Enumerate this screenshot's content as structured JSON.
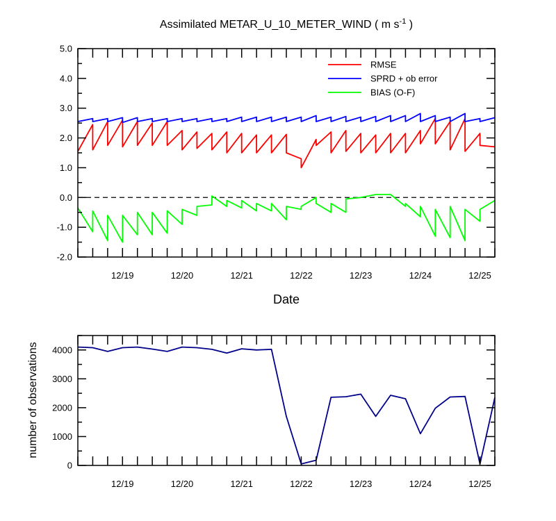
{
  "chart_data": [
    {
      "type": "line",
      "title": "Assimilated METAR_U_10_METER_WIND ( m s",
      "title_superscript": "-1",
      "title_close": " )",
      "xlabel": "Date",
      "ylabel": "",
      "xlim": [
        18.25,
        25.25
      ],
      "ylim": [
        -2.0,
        5.0
      ],
      "yticks": [
        -2.0,
        -1.0,
        0.0,
        1.0,
        2.0,
        3.0,
        4.0,
        5.0
      ],
      "ytick_labels": [
        "-2.0",
        "-1.0",
        "0.0",
        "1.0",
        "2.0",
        "3.0",
        "4.0",
        "5.0"
      ],
      "xticks": [
        19,
        20,
        21,
        22,
        23,
        24,
        25
      ],
      "xtick_labels": [
        "12/19",
        "12/20",
        "12/21",
        "12/22",
        "12/23",
        "12/24",
        "12/25"
      ],
      "zero_line": true,
      "legend_position": "top-right",
      "series": [
        {
          "name": "RMSE",
          "color": "#ff0000",
          "x": [
            18.25,
            18.5,
            18.5,
            18.75,
            18.75,
            19.0,
            19.0,
            19.25,
            19.25,
            19.5,
            19.5,
            19.75,
            19.75,
            20.0,
            20.0,
            20.25,
            20.25,
            20.5,
            20.5,
            20.75,
            20.75,
            21.0,
            21.0,
            21.25,
            21.25,
            21.5,
            21.5,
            21.75,
            21.75,
            22.0,
            22.0,
            22.25,
            22.25,
            22.5,
            22.5,
            22.75,
            22.75,
            23.0,
            23.0,
            23.25,
            23.25,
            23.5,
            23.5,
            23.75,
            23.75,
            24.0,
            24.0,
            24.25,
            24.25,
            24.5,
            24.5,
            24.75,
            24.75,
            25.0,
            25.0,
            25.25
          ],
          "y": [
            1.55,
            2.45,
            1.6,
            2.55,
            1.75,
            2.6,
            1.7,
            2.55,
            1.75,
            2.5,
            1.75,
            2.55,
            1.75,
            2.25,
            1.6,
            2.2,
            1.65,
            2.15,
            1.6,
            2.2,
            1.5,
            2.15,
            1.5,
            2.1,
            1.5,
            2.1,
            1.5,
            2.12,
            1.5,
            1.3,
            1.0,
            1.95,
            1.75,
            2.2,
            1.5,
            2.25,
            1.55,
            2.15,
            1.5,
            2.1,
            1.5,
            2.15,
            1.5,
            2.15,
            1.5,
            2.25,
            1.8,
            2.65,
            1.8,
            2.55,
            1.6,
            2.65,
            1.55,
            2.15,
            1.75,
            1.7
          ]
        },
        {
          "name": "SPRD + ob error",
          "color": "#0000ff",
          "x": [
            18.25,
            18.5,
            18.5,
            18.75,
            18.75,
            19.0,
            19.0,
            19.25,
            19.25,
            19.5,
            19.5,
            19.75,
            19.75,
            20.0,
            20.0,
            20.25,
            20.25,
            20.5,
            20.5,
            20.75,
            20.75,
            21.0,
            21.0,
            21.25,
            21.25,
            21.5,
            21.5,
            21.75,
            21.75,
            22.0,
            22.0,
            22.25,
            22.25,
            22.5,
            22.5,
            22.75,
            22.75,
            23.0,
            23.0,
            23.25,
            23.25,
            23.5,
            23.5,
            23.75,
            23.75,
            24.0,
            24.0,
            24.25,
            24.25,
            24.5,
            24.5,
            24.75,
            24.75,
            25.0,
            25.0,
            25.25
          ],
          "y": [
            2.55,
            2.65,
            2.55,
            2.65,
            2.55,
            2.68,
            2.52,
            2.68,
            2.55,
            2.65,
            2.55,
            2.65,
            2.55,
            2.65,
            2.55,
            2.65,
            2.55,
            2.65,
            2.55,
            2.65,
            2.55,
            2.7,
            2.55,
            2.7,
            2.55,
            2.7,
            2.55,
            2.7,
            2.55,
            2.7,
            2.55,
            2.75,
            2.55,
            2.7,
            2.55,
            2.72,
            2.55,
            2.7,
            2.55,
            2.72,
            2.55,
            2.75,
            2.55,
            2.75,
            2.55,
            2.82,
            2.55,
            2.75,
            2.55,
            2.7,
            2.55,
            2.82,
            2.55,
            2.65,
            2.55,
            2.68
          ]
        },
        {
          "name": "BIAS (O-F)",
          "color": "#00ff00",
          "x": [
            18.25,
            18.5,
            18.5,
            18.75,
            18.75,
            19.0,
            19.0,
            19.25,
            19.25,
            19.5,
            19.5,
            19.75,
            19.75,
            20.0,
            20.0,
            20.25,
            20.25,
            20.5,
            20.5,
            20.75,
            20.75,
            21.0,
            21.0,
            21.25,
            21.25,
            21.5,
            21.5,
            21.75,
            21.75,
            22.0,
            22.0,
            22.25,
            22.25,
            22.5,
            22.5,
            22.75,
            22.75,
            23.0,
            23.0,
            23.25,
            23.25,
            23.5,
            23.5,
            23.75,
            23.75,
            24.0,
            24.0,
            24.25,
            24.25,
            24.5,
            24.5,
            24.75,
            24.75,
            25.0,
            25.0,
            25.25
          ],
          "y": [
            -0.35,
            -1.15,
            -0.45,
            -1.45,
            -0.6,
            -1.5,
            -0.6,
            -1.25,
            -0.5,
            -1.25,
            -0.5,
            -1.2,
            -0.45,
            -0.9,
            -0.4,
            -0.6,
            -0.3,
            -0.25,
            0.05,
            -0.3,
            -0.1,
            -0.35,
            -0.1,
            -0.45,
            -0.2,
            -0.45,
            -0.2,
            -0.75,
            -0.3,
            -0.4,
            -0.3,
            0.0,
            -0.2,
            -0.5,
            -0.2,
            -0.5,
            -0.05,
            0.0,
            0.0,
            0.1,
            0.1,
            0.1,
            0.1,
            -0.3,
            -0.2,
            -0.65,
            -0.3,
            -1.3,
            -0.4,
            -1.35,
            -0.3,
            -1.45,
            -0.4,
            -0.8,
            -0.4,
            -0.1
          ]
        }
      ]
    },
    {
      "type": "line",
      "title": "",
      "xlabel": "",
      "ylabel": "number of observations",
      "xlim": [
        18.25,
        25.25
      ],
      "ylim": [
        0,
        4500
      ],
      "yticks": [
        0,
        1000,
        2000,
        3000,
        4000
      ],
      "ytick_labels": [
        "0",
        "1000",
        "2000",
        "3000",
        "4000"
      ],
      "xticks": [
        19,
        20,
        21,
        22,
        23,
        24,
        25
      ],
      "xtick_labels": [
        "12/19",
        "12/20",
        "12/21",
        "12/22",
        "12/23",
        "12/24",
        "12/25"
      ],
      "series": [
        {
          "name": "observations",
          "color": "#00008b",
          "x": [
            18.25,
            18.5,
            18.75,
            19.0,
            19.25,
            19.5,
            19.75,
            20.0,
            20.25,
            20.5,
            20.75,
            21.0,
            21.25,
            21.5,
            21.75,
            22.0,
            22.25,
            22.5,
            22.75,
            23.0,
            23.25,
            23.5,
            23.75,
            24.0,
            24.25,
            24.5,
            24.75,
            25.0,
            25.25
          ],
          "y": [
            4100,
            4080,
            3950,
            4080,
            4100,
            4030,
            3950,
            4100,
            4080,
            4020,
            3890,
            4040,
            4000,
            4020,
            1700,
            50,
            180,
            2360,
            2380,
            2470,
            1700,
            2430,
            2310,
            1100,
            1980,
            2370,
            2390,
            50,
            2350
          ]
        }
      ]
    }
  ]
}
